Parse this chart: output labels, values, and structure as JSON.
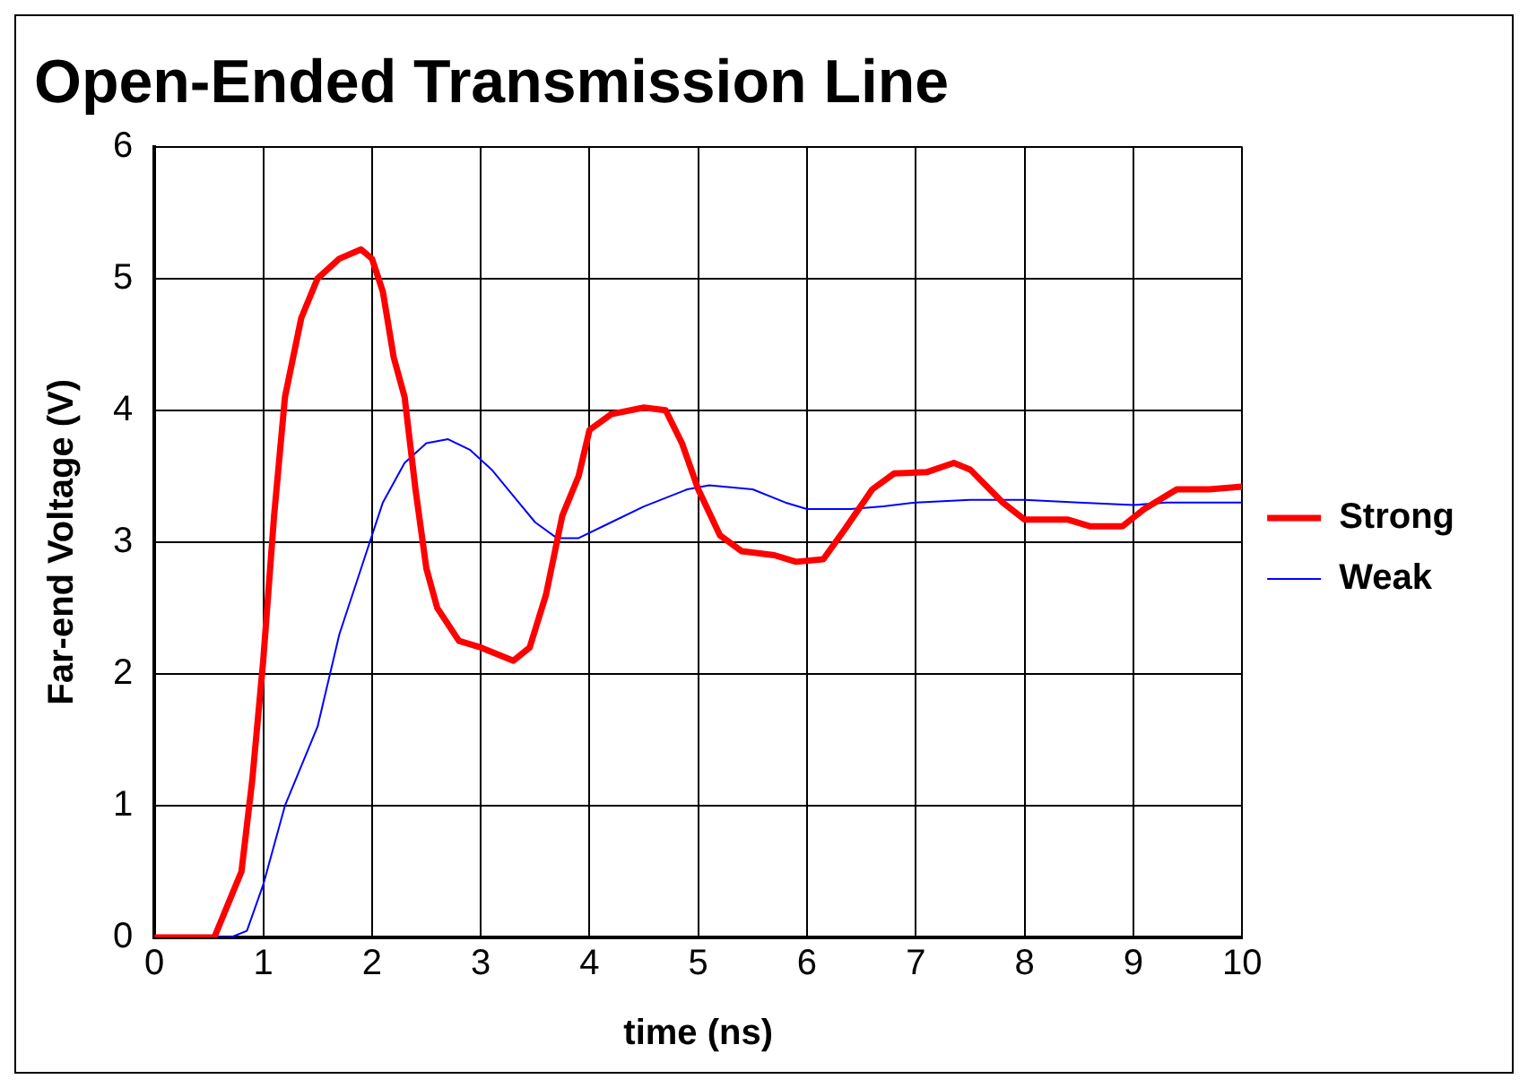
{
  "chart_data": {
    "type": "line",
    "title": "Open-Ended Transmission Line",
    "xlabel": "time (ns)",
    "ylabel": "Far-end Voltage (V)",
    "xlim": [
      0,
      10
    ],
    "xticks": [
      0,
      1,
      2,
      3,
      4,
      5,
      6,
      7,
      8,
      9,
      10
    ],
    "ylim": [
      0,
      6
    ],
    "yticks": [
      0,
      1,
      2,
      3,
      4,
      5,
      6
    ],
    "grid": true,
    "legend": "right",
    "marker": "none",
    "series": [
      {
        "name": "Strong",
        "color": "#ff0000",
        "x": [
          0,
          0.55,
          0.7,
          0.8,
          0.9,
          1.0,
          1.1,
          1.2,
          1.35,
          1.5,
          1.7,
          1.9,
          2.0,
          2.1,
          2.2,
          2.3,
          2.4,
          2.5,
          2.6,
          2.8,
          3.0,
          3.3,
          3.45,
          3.6,
          3.75,
          3.9,
          4.0,
          4.2,
          4.5,
          4.7,
          4.85,
          5.0,
          5.2,
          5.4,
          5.7,
          5.9,
          6.15,
          6.35,
          6.6,
          6.8,
          7.1,
          7.35,
          7.5,
          7.8,
          8.0,
          8.4,
          8.6,
          8.9,
          9.1,
          9.4,
          9.7,
          10
        ],
        "values": [
          0,
          0,
          0.3,
          0.5,
          1.2,
          2.1,
          3.2,
          4.1,
          4.7,
          5.0,
          5.15,
          5.22,
          5.15,
          4.9,
          4.4,
          4.1,
          3.4,
          2.8,
          2.5,
          2.25,
          2.2,
          2.1,
          2.2,
          2.6,
          3.2,
          3.5,
          3.85,
          3.97,
          4.02,
          4.0,
          3.75,
          3.4,
          3.05,
          2.93,
          2.9,
          2.85,
          2.87,
          3.1,
          3.4,
          3.52,
          3.53,
          3.6,
          3.55,
          3.3,
          3.17,
          3.17,
          3.12,
          3.12,
          3.25,
          3.4,
          3.4,
          3.42
        ]
      },
      {
        "name": "Weak",
        "color": "#0000ff",
        "x": [
          0,
          0.7,
          0.85,
          1.0,
          1.2,
          1.5,
          1.7,
          1.9,
          2.1,
          2.3,
          2.5,
          2.7,
          2.9,
          3.1,
          3.3,
          3.5,
          3.7,
          3.9,
          4.2,
          4.5,
          4.9,
          5.1,
          5.5,
          5.8,
          6.0,
          6.4,
          6.7,
          7.0,
          7.5,
          8.0,
          8.5,
          9.0,
          9.3,
          10
        ],
        "values": [
          0,
          0,
          0.05,
          0.4,
          1.0,
          1.6,
          2.3,
          2.8,
          3.3,
          3.6,
          3.75,
          3.78,
          3.7,
          3.55,
          3.35,
          3.15,
          3.03,
          3.03,
          3.15,
          3.27,
          3.4,
          3.43,
          3.4,
          3.3,
          3.25,
          3.25,
          3.27,
          3.3,
          3.32,
          3.32,
          3.3,
          3.28,
          3.3,
          3.3
        ]
      }
    ]
  }
}
